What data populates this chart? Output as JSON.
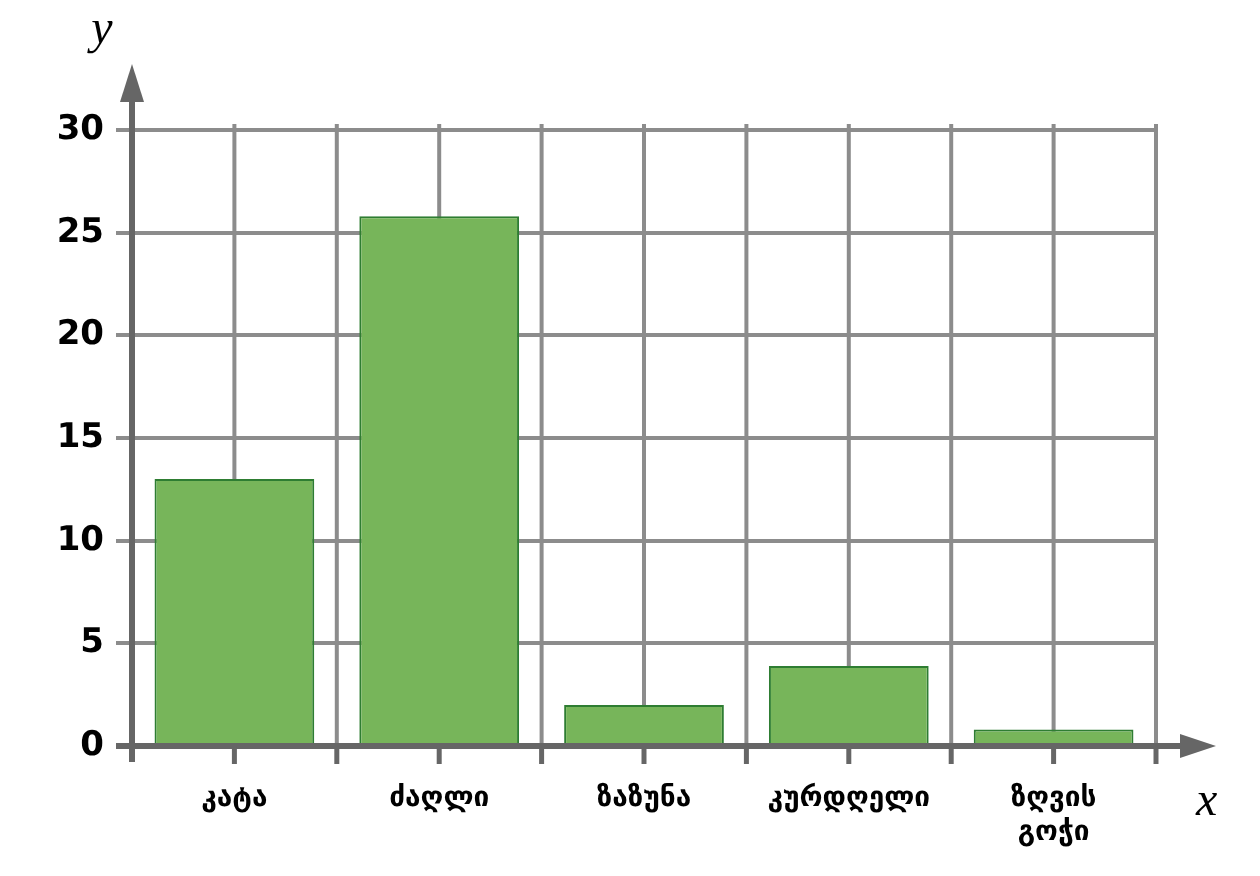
{
  "chart_data": {
    "type": "bar",
    "xlabel": "x",
    "ylabel": "y",
    "categories": [
      "კატა",
      "ძაღლი",
      "ზაზუნა",
      "კურდღელი",
      "ზღვის გოჭი"
    ],
    "values": [
      13,
      25.8,
      2,
      3.9,
      0.8
    ],
    "color": "#77b55a",
    "ylim": [
      0,
      30
    ],
    "yticks": [
      0,
      5,
      10,
      15,
      20,
      25,
      30
    ],
    "grid": true
  }
}
